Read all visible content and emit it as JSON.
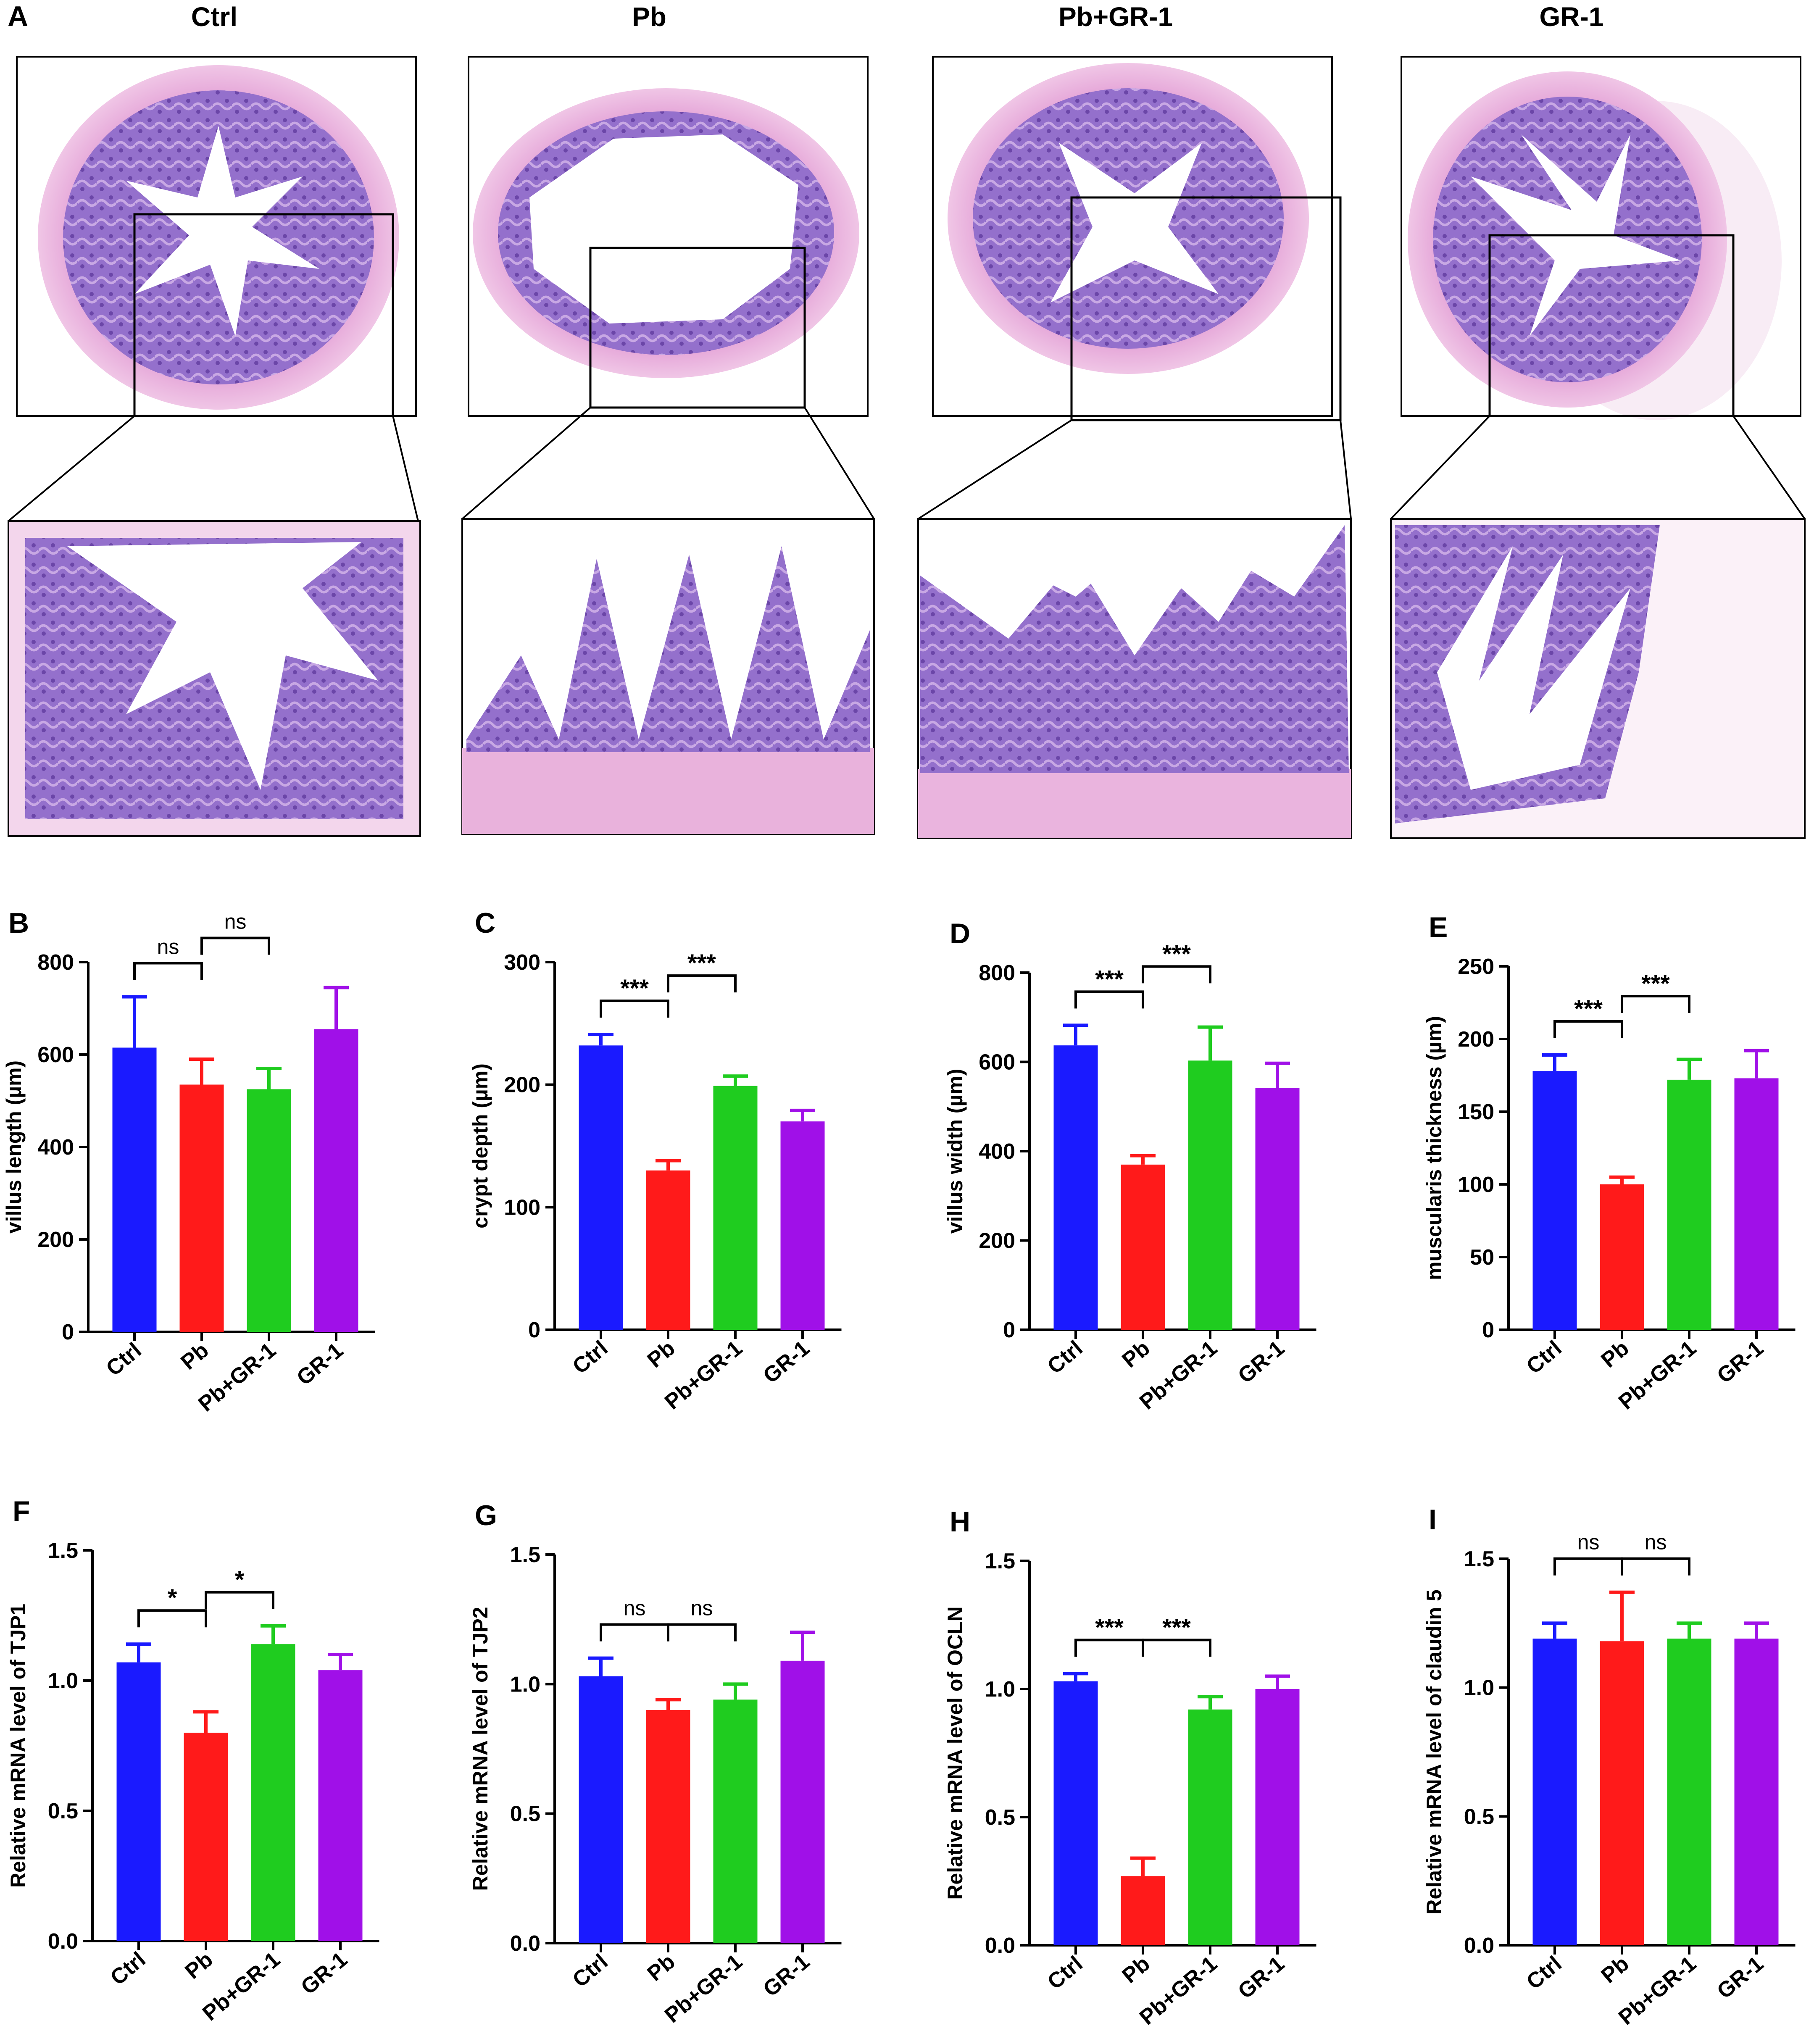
{
  "panel_a": {
    "letter": "A",
    "groups": [
      "Ctrl",
      "Pb",
      "Pb+GR-1",
      "GR-1"
    ]
  },
  "colors": {
    "Ctrl": "#1a1aff",
    "Pb": "#ff1a1a",
    "Pb+GR-1": "#1fcc1f",
    "GR-1": "#a010e8",
    "tissue_lumen": "#ffffff",
    "tissue_mucosa": "#8a5fc4",
    "tissue_muscle": "#e9a6d8",
    "tissue_pale": "#f6e6f2"
  },
  "chart_data": [
    {
      "panel": "B",
      "type": "bar",
      "categories": [
        "Ctrl",
        "Pb",
        "Pb+GR-1",
        "GR-1"
      ],
      "values": [
        615,
        535,
        525,
        655
      ],
      "errors": [
        110,
        55,
        45,
        90
      ],
      "ylabel": "villus length (µm)",
      "ylim": [
        0,
        800
      ],
      "yticks": [
        0,
        200,
        400,
        600,
        800
      ],
      "significance": [
        {
          "from": 0,
          "to": 1,
          "label": "ns"
        },
        {
          "from": 1,
          "to": 2,
          "label": "ns"
        }
      ]
    },
    {
      "panel": "C",
      "type": "bar",
      "categories": [
        "Ctrl",
        "Pb",
        "Pb+GR-1",
        "GR-1"
      ],
      "values": [
        232,
        130,
        199,
        170
      ],
      "errors": [
        9,
        8,
        8,
        9
      ],
      "ylabel": "crypt depth (µm)",
      "ylim": [
        0,
        300
      ],
      "yticks": [
        0,
        100,
        200,
        300
      ],
      "significance": [
        {
          "from": 0,
          "to": 1,
          "label": "***"
        },
        {
          "from": 1,
          "to": 2,
          "label": "***"
        }
      ]
    },
    {
      "panel": "D",
      "type": "bar",
      "categories": [
        "Ctrl",
        "Pb",
        "Pb+GR-1",
        "GR-1"
      ],
      "values": [
        637,
        370,
        603,
        542
      ],
      "errors": [
        45,
        20,
        75,
        55
      ],
      "ylabel": "villus width (µm)",
      "ylim": [
        0,
        800
      ],
      "yticks": [
        0,
        200,
        400,
        600,
        800
      ],
      "significance": [
        {
          "from": 0,
          "to": 1,
          "label": "***"
        },
        {
          "from": 1,
          "to": 2,
          "label": "***"
        }
      ]
    },
    {
      "panel": "E",
      "type": "bar",
      "categories": [
        "Ctrl",
        "Pb",
        "Pb+GR-1",
        "GR-1"
      ],
      "values": [
        178,
        100,
        172,
        173
      ],
      "errors": [
        11,
        5,
        14,
        19
      ],
      "ylabel": "muscularis thickness (µm)",
      "ylim": [
        0,
        250
      ],
      "yticks": [
        0,
        50,
        100,
        150,
        200,
        250
      ],
      "significance": [
        {
          "from": 0,
          "to": 1,
          "label": "***"
        },
        {
          "from": 1,
          "to": 2,
          "label": "***"
        }
      ]
    },
    {
      "panel": "F",
      "type": "bar",
      "categories": [
        "Ctrl",
        "Pb",
        "Pb+GR-1",
        "GR-1"
      ],
      "values": [
        1.07,
        0.8,
        1.14,
        1.04
      ],
      "errors": [
        0.07,
        0.08,
        0.07,
        0.06
      ],
      "ylabel": "Relative mRNA level of TJP1",
      "ylim": [
        0,
        1.5
      ],
      "yticks": [
        0.0,
        0.5,
        1.0,
        1.5
      ],
      "significance": [
        {
          "from": 0,
          "to": 1,
          "label": "*"
        },
        {
          "from": 1,
          "to": 2,
          "label": "*"
        }
      ]
    },
    {
      "panel": "G",
      "type": "bar",
      "categories": [
        "Ctrl",
        "Pb",
        "Pb+GR-1",
        "GR-1"
      ],
      "values": [
        1.03,
        0.9,
        0.94,
        1.09
      ],
      "errors": [
        0.07,
        0.04,
        0.06,
        0.11
      ],
      "ylabel": "Relative mRNA level of TJP2",
      "ylim": [
        0,
        1.5
      ],
      "yticks": [
        0.0,
        0.5,
        1.0,
        1.5
      ],
      "significance": [
        {
          "from": 0,
          "to": 1,
          "label": "ns"
        },
        {
          "from": 1,
          "to": 2,
          "label": "ns"
        }
      ]
    },
    {
      "panel": "H",
      "type": "bar",
      "categories": [
        "Ctrl",
        "Pb",
        "Pb+GR-1",
        "GR-1"
      ],
      "values": [
        1.03,
        0.27,
        0.92,
        1.0
      ],
      "errors": [
        0.03,
        0.07,
        0.05,
        0.05
      ],
      "ylabel": "Relative mRNA level of OCLN",
      "ylim": [
        0,
        1.5
      ],
      "yticks": [
        0.0,
        0.5,
        1.0,
        1.5
      ],
      "significance": [
        {
          "from": 0,
          "to": 1,
          "label": "***"
        },
        {
          "from": 1,
          "to": 2,
          "label": "***"
        }
      ]
    },
    {
      "panel": "I",
      "type": "bar",
      "categories": [
        "Ctrl",
        "Pb",
        "Pb+GR-1",
        "GR-1"
      ],
      "values": [
        1.19,
        1.18,
        1.19,
        1.19
      ],
      "errors": [
        0.06,
        0.19,
        0.06,
        0.06
      ],
      "ylabel": "Relative mRNA level of claudin 5",
      "ylim": [
        0,
        1.5
      ],
      "yticks": [
        0.0,
        0.5,
        1.0,
        1.5
      ],
      "significance": [
        {
          "from": 0,
          "to": 1,
          "label": "ns"
        },
        {
          "from": 1,
          "to": 2,
          "label": "ns"
        }
      ]
    }
  ]
}
